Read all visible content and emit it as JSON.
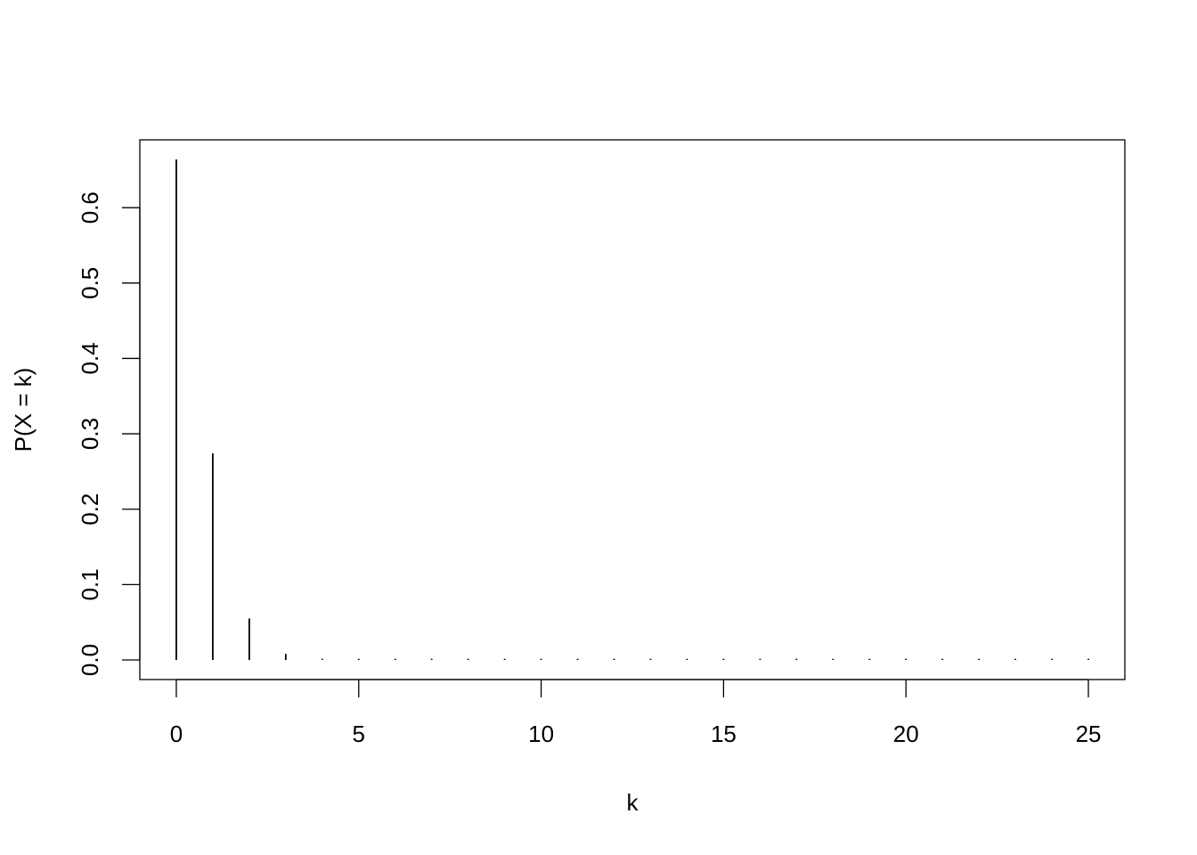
{
  "chart_data": {
    "type": "bar",
    "style": "vertical lines (histogram-like spikes)",
    "title": "",
    "xlabel": "k",
    "ylabel": "P(X = k)",
    "x": [
      0,
      1,
      2,
      3,
      4,
      5,
      6,
      7,
      8,
      9,
      10,
      11,
      12,
      13,
      14,
      15,
      16,
      17,
      18,
      19,
      20,
      21,
      22,
      23,
      24,
      25
    ],
    "values": [
      0.664,
      0.274,
      0.055,
      0.008,
      0.001,
      0,
      0,
      0,
      0,
      0,
      0,
      0,
      0,
      0,
      0,
      0,
      0,
      0,
      0,
      0,
      0,
      0,
      0,
      0,
      0,
      0
    ],
    "xlim": [
      -1,
      26
    ],
    "ylim": [
      -0.026,
      0.69
    ],
    "xticks": [
      0,
      5,
      10,
      15,
      20,
      25
    ],
    "xtick_labels": [
      "0",
      "5",
      "10",
      "15",
      "20",
      "25"
    ],
    "yticks": [
      0,
      0.1,
      0.2,
      0.3,
      0.4,
      0.5,
      0.6
    ],
    "ytick_labels": [
      "0.0",
      "0.1",
      "0.2",
      "0.3",
      "0.4",
      "0.5",
      "0.6"
    ],
    "grid": false,
    "legend": "none",
    "line_color": "#000000"
  }
}
